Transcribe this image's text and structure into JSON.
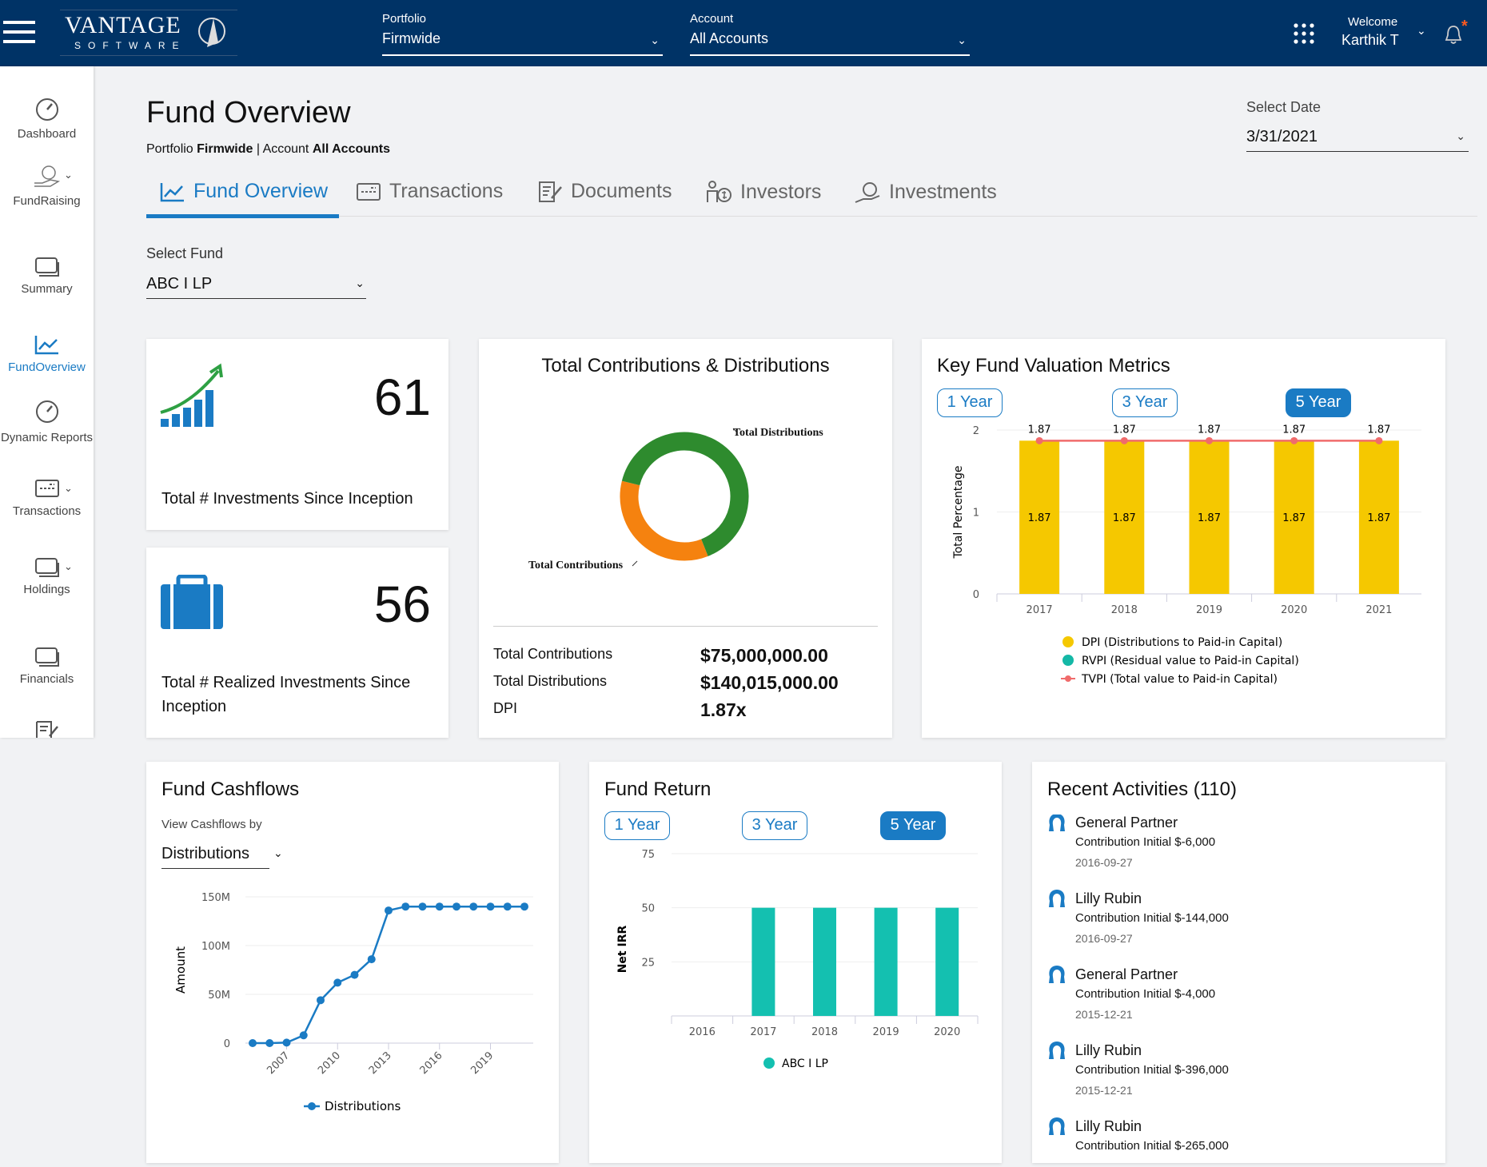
{
  "header": {
    "logo_text": "VANTAGE",
    "logo_sub": "SOFTWARE",
    "portfolio_label": "Portfolio",
    "portfolio_value": "Firmwide",
    "account_label": "Account",
    "account_value": "All Accounts",
    "welcome": "Welcome",
    "user": "Karthik T",
    "notification_dot": "*"
  },
  "sidebar": {
    "items": [
      {
        "label": "Dashboard",
        "icon": "gauge-icon"
      },
      {
        "label": "FundRaising",
        "icon": "hand-coins-icon"
      },
      {
        "label": "Summary",
        "icon": "cards-icon"
      },
      {
        "label": "FundOverview",
        "icon": "chart-line-icon",
        "active": true
      },
      {
        "label": "Dynamic Reports",
        "icon": "gauge-icon"
      },
      {
        "label": "Transactions",
        "icon": "card-icon"
      },
      {
        "label": "Holdings",
        "icon": "cards-icon"
      },
      {
        "label": "Financials",
        "icon": "cards-icon"
      }
    ]
  },
  "page": {
    "title": "Fund Overview",
    "crumb_portfolio_label": "Portfolio",
    "crumb_portfolio": "Firmwide",
    "crumb_sep": "|",
    "crumb_account_label": "Account",
    "crumb_account": "All Accounts",
    "date_label": "Select Date",
    "date_value": "3/31/2021",
    "fund_label": "Select Fund",
    "fund_value": "ABC I LP"
  },
  "tabs": [
    {
      "label": "Fund Overview",
      "active": true
    },
    {
      "label": "Transactions"
    },
    {
      "label": "Documents"
    },
    {
      "label": "Investors"
    },
    {
      "label": "Investments"
    }
  ],
  "stats": {
    "investments_count": "61",
    "investments_label": "Total # Investments Since Inception",
    "realized_count": "56",
    "realized_label": "Total # Realized Investments Since Inception"
  },
  "contrib": {
    "title": "Total Contributions & Distributions",
    "dist_label": "Total Distributions",
    "contrib_label": "Total Contributions",
    "rows": [
      {
        "label": "Total Contributions",
        "value": "$75,000,000.00"
      },
      {
        "label": "Total Distributions",
        "value": "$140,015,000.00"
      },
      {
        "label": "DPI",
        "value": "1.87x"
      }
    ],
    "colors": {
      "distributions": "#2e8b2e",
      "contributions": "#f5820f"
    }
  },
  "periods": [
    "1 Year",
    "3 Year",
    "5 Year"
  ],
  "chart_data": [
    {
      "type": "bar",
      "title": "Key Fund Valuation Metrics",
      "ylabel": "Total Percentage",
      "ylim": [
        0,
        2
      ],
      "yticks": [
        0,
        1,
        2
      ],
      "categories": [
        "2017",
        "2018",
        "2019",
        "2020",
        "2021"
      ],
      "selected_period": "5 Year",
      "series": [
        {
          "name": "DPI (Distributions to Paid-in Capital)",
          "type": "bar",
          "color": "#f5c800",
          "values": [
            1.87,
            1.87,
            1.87,
            1.87,
            1.87
          ]
        },
        {
          "name": "RVPI (Residual value to Paid-in Capital)",
          "type": "bar",
          "color": "#14b8a6",
          "values": [
            0,
            0,
            0,
            0,
            0
          ]
        },
        {
          "name": "TVPI (Total value to Paid-in Capital)",
          "type": "line",
          "color": "#f06b6b",
          "values": [
            1.87,
            1.87,
            1.87,
            1.87,
            1.87
          ]
        }
      ],
      "legend": "bottom",
      "grid": true
    },
    {
      "type": "line",
      "title": "Fund Cashflows",
      "view_by_label": "View Cashflows by",
      "view_by": "Distributions",
      "ylabel": "Amount",
      "ylim": [
        0,
        150000000
      ],
      "yticks": [
        "0",
        "50M",
        "100M",
        "150M"
      ],
      "xticks": [
        "2007",
        "2010",
        "2013",
        "2016",
        "2019"
      ],
      "x": [
        2005,
        2006,
        2007,
        2008,
        2009,
        2010,
        2011,
        2012,
        2013,
        2014,
        2015,
        2016,
        2017,
        2018,
        2019,
        2020,
        2021
      ],
      "series": [
        {
          "name": "Distributions",
          "color": "#1a7bc4",
          "values": [
            0,
            0,
            500000,
            8000000,
            44000000,
            62000000,
            70000000,
            86000000,
            136000000,
            140000000,
            140000000,
            140000000,
            140000000,
            140000000,
            140000000,
            140000000,
            140000000
          ]
        }
      ],
      "legend": "bottom",
      "grid": true
    },
    {
      "type": "bar",
      "title": "Fund Return",
      "ylabel": "Net IRR",
      "ylim": [
        0,
        75
      ],
      "yticks": [
        25,
        50,
        75
      ],
      "categories": [
        "2016",
        "2017",
        "2018",
        "2019",
        "2020"
      ],
      "selected_period": "5 Year",
      "series": [
        {
          "name": "ABC I LP",
          "color": "#14c0b0",
          "values": [
            null,
            50,
            50,
            50,
            50
          ]
        }
      ],
      "legend": "bottom",
      "grid": true
    }
  ],
  "activities": {
    "title": "Recent Activities (110)",
    "items": [
      {
        "name": "General Partner",
        "desc": "Contribution Initial $-6,000",
        "date": "2016-09-27"
      },
      {
        "name": "Lilly Rubin",
        "desc": "Contribution Initial $-144,000",
        "date": "2016-09-27"
      },
      {
        "name": "General Partner",
        "desc": "Contribution Initial $-4,000",
        "date": "2015-12-21"
      },
      {
        "name": "Lilly Rubin",
        "desc": "Contribution Initial $-396,000",
        "date": "2015-12-21"
      },
      {
        "name": "Lilly Rubin",
        "desc": "Contribution Initial $-265,000",
        "date": ""
      }
    ]
  }
}
